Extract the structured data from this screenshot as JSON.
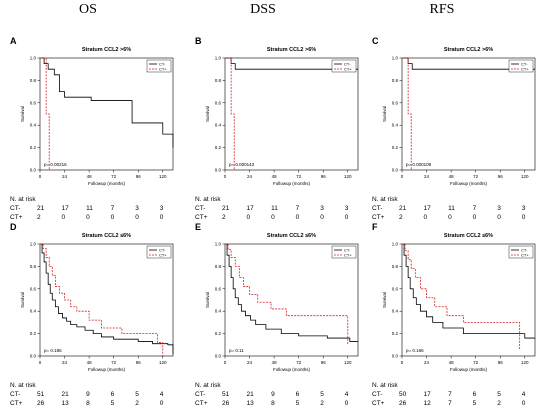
{
  "column_headers": [
    "OS",
    "DSS",
    "RFS"
  ],
  "risk_header": "N. at risk",
  "chart_data": [
    {
      "letter": "A",
      "type": "line",
      "title": "Stratum CCL2 >6%",
      "xlabel": "Followup (months)",
      "ylabel": "Survival",
      "xticks": [
        0,
        24,
        48,
        72,
        96,
        120
      ],
      "yticks": [
        0.0,
        0.2,
        0.4,
        0.6,
        0.8,
        1.0
      ],
      "xlim": [
        0,
        130
      ],
      "ylim": [
        0,
        1
      ],
      "legend": [
        "CT-",
        "CT+"
      ],
      "legend_position": "top-right",
      "pvalue": "p= 0.00216",
      "series": [
        {
          "name": "CT-",
          "color": "#000000",
          "dash": false,
          "x": [
            0,
            4,
            4,
            8,
            8,
            14,
            14,
            19,
            19,
            24,
            24,
            50,
            50,
            90,
            90,
            120,
            120,
            130,
            130
          ],
          "y": [
            1.0,
            1.0,
            0.95,
            0.95,
            0.9,
            0.9,
            0.85,
            0.85,
            0.7,
            0.7,
            0.65,
            0.65,
            0.62,
            0.62,
            0.42,
            0.42,
            0.32,
            0.32,
            0.2
          ]
        },
        {
          "name": "CT+",
          "color": "#d62020",
          "dash": true,
          "x": [
            0,
            6,
            6,
            9,
            9
          ],
          "y": [
            1.0,
            1.0,
            0.5,
            0.5,
            0.0
          ]
        }
      ],
      "risk": [
        {
          "label": "CT-",
          "values": [
            "21",
            "17",
            "11",
            "7",
            "3",
            "3"
          ]
        },
        {
          "label": "CT+",
          "values": [
            "2",
            "0",
            "0",
            "0",
            "0",
            "0"
          ]
        }
      ]
    },
    {
      "letter": "B",
      "type": "line",
      "title": "Stratum CCL2 >6%",
      "xlabel": "Followup (months)",
      "ylabel": "Survival",
      "xticks": [
        0,
        24,
        48,
        72,
        96,
        120
      ],
      "yticks": [
        0.0,
        0.2,
        0.4,
        0.6,
        0.8,
        1.0
      ],
      "xlim": [
        0,
        130
      ],
      "ylim": [
        0,
        1
      ],
      "legend": [
        "CT-",
        "CT+"
      ],
      "legend_position": "top-right",
      "pvalue": "p= 0.000143",
      "series": [
        {
          "name": "CT-",
          "color": "#000000",
          "dash": false,
          "x": [
            0,
            6,
            6,
            10,
            10,
            130
          ],
          "y": [
            1.0,
            1.0,
            0.95,
            0.95,
            0.9,
            0.9
          ]
        },
        {
          "name": "CT+",
          "color": "#d62020",
          "dash": true,
          "x": [
            0,
            6,
            6,
            9,
            9
          ],
          "y": [
            1.0,
            1.0,
            0.5,
            0.5,
            0.0
          ]
        }
      ],
      "risk": [
        {
          "label": "CT-",
          "values": [
            "21",
            "17",
            "11",
            "7",
            "3",
            "3"
          ]
        },
        {
          "label": "CT+",
          "values": [
            "2",
            "0",
            "0",
            "0",
            "0",
            "0"
          ]
        }
      ]
    },
    {
      "letter": "C",
      "type": "line",
      "title": "Stratum CCL2 >6%",
      "xlabel": "Followup (months)",
      "ylabel": "Survival",
      "xticks": [
        0,
        24,
        48,
        72,
        96,
        120
      ],
      "yticks": [
        0.0,
        0.2,
        0.4,
        0.6,
        0.8,
        1.0
      ],
      "xlim": [
        0,
        130
      ],
      "ylim": [
        0,
        1
      ],
      "legend": [
        "CT-",
        "CT+"
      ],
      "legend_position": "top-right",
      "pvalue": "p= 0.000108",
      "series": [
        {
          "name": "CT-",
          "color": "#000000",
          "dash": false,
          "x": [
            0,
            6,
            6,
            10,
            10,
            130
          ],
          "y": [
            1.0,
            1.0,
            0.95,
            0.95,
            0.9,
            0.9
          ]
        },
        {
          "name": "CT+",
          "color": "#d62020",
          "dash": true,
          "x": [
            0,
            6,
            6,
            9,
            9
          ],
          "y": [
            1.0,
            1.0,
            0.5,
            0.5,
            0.0
          ]
        }
      ],
      "risk": [
        {
          "label": "CT-",
          "values": [
            "21",
            "17",
            "11",
            "7",
            "3",
            "3"
          ]
        },
        {
          "label": "CT+",
          "values": [
            "2",
            "0",
            "0",
            "0",
            "0",
            "0"
          ]
        }
      ]
    },
    {
      "letter": "D",
      "type": "line",
      "title": "Stratum CCL2 ≤6%",
      "xlabel": "Followup (months)",
      "ylabel": "Survival",
      "xticks": [
        0,
        24,
        48,
        72,
        96,
        120
      ],
      "yticks": [
        0.0,
        0.2,
        0.4,
        0.6,
        0.8,
        1.0
      ],
      "xlim": [
        0,
        130
      ],
      "ylim": [
        0,
        1
      ],
      "legend": [
        "CT-",
        "CT+"
      ],
      "legend_position": "top-right",
      "pvalue": "p= 0.186",
      "series": [
        {
          "name": "CT-",
          "color": "#000000",
          "dash": false,
          "x": [
            0,
            2,
            2,
            4,
            4,
            6,
            6,
            8,
            8,
            10,
            10,
            12,
            12,
            15,
            15,
            18,
            18,
            22,
            22,
            26,
            26,
            30,
            30,
            36,
            36,
            44,
            44,
            52,
            52,
            60,
            60,
            72,
            72,
            96,
            96,
            110,
            110,
            125,
            125,
            130,
            130
          ],
          "y": [
            1.0,
            1.0,
            0.92,
            0.92,
            0.84,
            0.84,
            0.74,
            0.74,
            0.64,
            0.64,
            0.56,
            0.56,
            0.5,
            0.5,
            0.44,
            0.44,
            0.38,
            0.38,
            0.34,
            0.34,
            0.31,
            0.31,
            0.28,
            0.28,
            0.26,
            0.26,
            0.23,
            0.23,
            0.2,
            0.2,
            0.17,
            0.17,
            0.15,
            0.15,
            0.13,
            0.13,
            0.11,
            0.11,
            0.1,
            0.1,
            0.02
          ]
        },
        {
          "name": "CT+",
          "color": "#d62020",
          "dash": true,
          "x": [
            0,
            3,
            3,
            6,
            6,
            9,
            9,
            12,
            12,
            15,
            15,
            19,
            19,
            24,
            24,
            30,
            30,
            36,
            36,
            48,
            48,
            60,
            60,
            80,
            80,
            115,
            115,
            120,
            120
          ],
          "y": [
            1.0,
            1.0,
            0.96,
            0.96,
            0.88,
            0.88,
            0.8,
            0.8,
            0.72,
            0.72,
            0.62,
            0.62,
            0.56,
            0.56,
            0.5,
            0.5,
            0.44,
            0.44,
            0.4,
            0.4,
            0.32,
            0.32,
            0.25,
            0.25,
            0.2,
            0.2,
            0.12,
            0.12,
            0.0
          ]
        }
      ],
      "risk": [
        {
          "label": "CT-",
          "values": [
            "51",
            "21",
            "9",
            "6",
            "5",
            "4"
          ]
        },
        {
          "label": "CT+",
          "values": [
            "26",
            "13",
            "8",
            "5",
            "2",
            "0"
          ]
        }
      ]
    },
    {
      "letter": "E",
      "type": "line",
      "title": "Stratum CCL2 ≤6%",
      "xlabel": "Followup (months)",
      "ylabel": "Survival",
      "xticks": [
        0,
        24,
        48,
        72,
        96,
        120
      ],
      "yticks": [
        0.0,
        0.2,
        0.4,
        0.6,
        0.8,
        1.0
      ],
      "xlim": [
        0,
        130
      ],
      "ylim": [
        0,
        1
      ],
      "legend": [
        "CT-",
        "CT+"
      ],
      "legend_position": "top-right",
      "pvalue": "p= 0.11",
      "series": [
        {
          "name": "CT-",
          "color": "#000000",
          "dash": false,
          "x": [
            0,
            2,
            2,
            4,
            4,
            6,
            6,
            8,
            8,
            10,
            10,
            13,
            13,
            16,
            16,
            20,
            20,
            25,
            25,
            30,
            30,
            40,
            40,
            55,
            55,
            72,
            72,
            100,
            100,
            122,
            122,
            130
          ],
          "y": [
            1.0,
            1.0,
            0.9,
            0.9,
            0.8,
            0.8,
            0.7,
            0.7,
            0.6,
            0.6,
            0.52,
            0.52,
            0.46,
            0.46,
            0.4,
            0.4,
            0.36,
            0.36,
            0.32,
            0.32,
            0.28,
            0.28,
            0.24,
            0.24,
            0.2,
            0.2,
            0.18,
            0.18,
            0.16,
            0.16,
            0.13,
            0.13
          ]
        },
        {
          "name": "CT+",
          "color": "#d62020",
          "dash": true,
          "x": [
            0,
            3,
            3,
            6,
            6,
            10,
            10,
            14,
            14,
            18,
            18,
            24,
            24,
            32,
            32,
            45,
            45,
            60,
            60,
            120,
            120
          ],
          "y": [
            1.0,
            1.0,
            0.95,
            0.95,
            0.88,
            0.88,
            0.8,
            0.8,
            0.7,
            0.7,
            0.62,
            0.62,
            0.55,
            0.55,
            0.48,
            0.48,
            0.42,
            0.42,
            0.36,
            0.36,
            0.1
          ]
        }
      ],
      "risk": [
        {
          "label": "CT-",
          "values": [
            "51",
            "21",
            "9",
            "6",
            "5",
            "4"
          ]
        },
        {
          "label": "CT+",
          "values": [
            "26",
            "13",
            "8",
            "5",
            "2",
            "0"
          ]
        }
      ]
    },
    {
      "letter": "F",
      "type": "line",
      "title": "Stratum CCL2 ≤6%",
      "xlabel": "Followup (months)",
      "ylabel": "Survival",
      "xticks": [
        0,
        24,
        48,
        72,
        96,
        120
      ],
      "yticks": [
        0.0,
        0.2,
        0.4,
        0.6,
        0.8,
        1.0
      ],
      "xlim": [
        0,
        130
      ],
      "ylim": [
        0,
        1
      ],
      "legend": [
        "CT-",
        "CT+"
      ],
      "legend_position": "top-right",
      "pvalue": "p= 0.166",
      "series": [
        {
          "name": "CT-",
          "color": "#000000",
          "dash": false,
          "x": [
            0,
            2,
            2,
            4,
            4,
            6,
            6,
            8,
            8,
            11,
            11,
            14,
            14,
            18,
            18,
            24,
            24,
            30,
            30,
            40,
            40,
            60,
            60,
            120,
            120,
            130
          ],
          "y": [
            1.0,
            1.0,
            0.9,
            0.9,
            0.8,
            0.8,
            0.7,
            0.7,
            0.6,
            0.6,
            0.52,
            0.52,
            0.46,
            0.46,
            0.4,
            0.4,
            0.35,
            0.35,
            0.3,
            0.3,
            0.25,
            0.25,
            0.2,
            0.2,
            0.16,
            0.16
          ]
        },
        {
          "name": "CT+",
          "color": "#d62020",
          "dash": true,
          "x": [
            0,
            3,
            3,
            6,
            6,
            9,
            9,
            13,
            13,
            18,
            18,
            24,
            24,
            32,
            32,
            44,
            44,
            60,
            60,
            115,
            115
          ],
          "y": [
            1.0,
            1.0,
            0.94,
            0.94,
            0.86,
            0.86,
            0.78,
            0.78,
            0.7,
            0.7,
            0.6,
            0.6,
            0.52,
            0.52,
            0.44,
            0.44,
            0.36,
            0.36,
            0.3,
            0.3,
            0.05
          ]
        }
      ],
      "risk": [
        {
          "label": "CT-",
          "values": [
            "50",
            "17",
            "7",
            "6",
            "5",
            "4"
          ]
        },
        {
          "label": "CT+",
          "values": [
            "26",
            "12",
            "7",
            "5",
            "2",
            "0"
          ]
        }
      ]
    }
  ]
}
